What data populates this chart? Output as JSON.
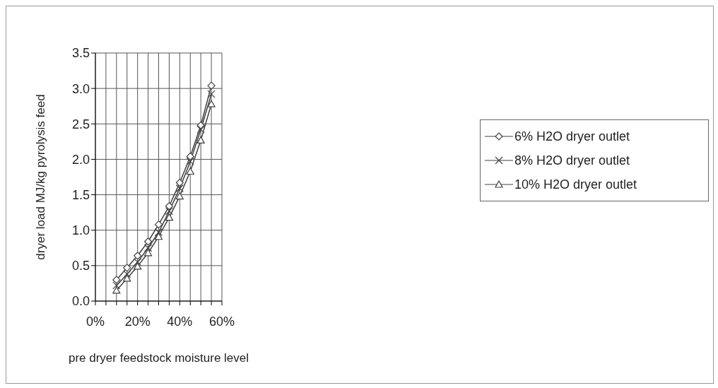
{
  "chart_data": {
    "type": "line",
    "xlabel": "pre dryer feedstock moisture  level",
    "ylabel": "dryer load MJ/kg pyrolysis feed",
    "x": [
      10,
      15,
      20,
      25,
      30,
      35,
      40,
      45,
      50,
      55
    ],
    "xlim": [
      0,
      60
    ],
    "xticks": [
      {
        "value": 0,
        "label": "0%"
      },
      {
        "value": 5,
        "label": null
      },
      {
        "value": 10,
        "label": null
      },
      {
        "value": 15,
        "label": null
      },
      {
        "value": 20,
        "label": "20%"
      },
      {
        "value": 25,
        "label": null
      },
      {
        "value": 30,
        "label": null
      },
      {
        "value": 35,
        "label": null
      },
      {
        "value": 40,
        "label": "40%"
      },
      {
        "value": 45,
        "label": null
      },
      {
        "value": 50,
        "label": null
      },
      {
        "value": 55,
        "label": null
      },
      {
        "value": 60,
        "label": "60%"
      }
    ],
    "ylim": [
      0,
      3.5
    ],
    "yticks": [
      {
        "value": 0,
        "label": "0.0"
      },
      {
        "value": 0.5,
        "label": "0.5"
      },
      {
        "value": 1,
        "label": "1.0"
      },
      {
        "value": 1.5,
        "label": "1.5"
      },
      {
        "value": 2,
        "label": "2.0"
      },
      {
        "value": 2.5,
        "label": "2.5"
      },
      {
        "value": 3,
        "label": "3.0"
      },
      {
        "value": 3.5,
        "label": "3.5"
      }
    ],
    "grid": true,
    "legend": "right",
    "line_style": "solid",
    "series": [
      {
        "name": "6% H2O dryer outlet",
        "color": "#404040",
        "marker": "diamond",
        "values": [
          0.3,
          0.47,
          0.64,
          0.84,
          1.08,
          1.34,
          1.67,
          2.04,
          2.48,
          3.04
        ]
      },
      {
        "name": "8% H2O dryer outlet",
        "color": "#404040",
        "marker": "cross",
        "values": [
          0.22,
          0.38,
          0.55,
          0.75,
          0.97,
          1.27,
          1.59,
          1.97,
          2.42,
          2.92
        ]
      },
      {
        "name": "10% H2O dryer outlet",
        "color": "#404040",
        "marker": "triangle",
        "values": [
          0.15,
          0.32,
          0.49,
          0.68,
          0.91,
          1.18,
          1.48,
          1.83,
          2.27,
          2.78
        ]
      }
    ]
  }
}
